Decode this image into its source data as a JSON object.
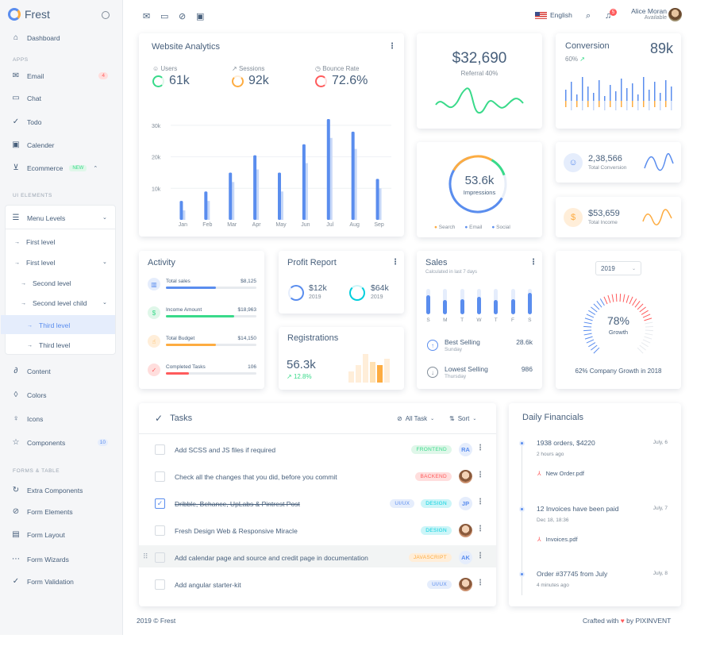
{
  "brand": {
    "name": "Frest"
  },
  "topbar": {
    "language": "English",
    "notif_count": "5",
    "user_name": "Alice Moran",
    "user_status": "Available"
  },
  "sidebar": {
    "dashboard": "Dashboard",
    "apps_header": "APPS",
    "email": "Email",
    "email_badge": "4",
    "chat": "Chat",
    "todo": "Todo",
    "calender": "Calender",
    "ecommerce": "Ecommerce",
    "ecommerce_badge": "NEW",
    "ui_header": "UI ELEMENTS",
    "menu_levels": "Menu Levels",
    "first_level_1": "First level",
    "first_level_2": "First level",
    "second_level": "Second level",
    "second_level_child": "Second level child",
    "third_level_1": "Third level",
    "third_level_2": "Third level",
    "content": "Content",
    "colors": "Colors",
    "icons": "Icons",
    "components": "Components",
    "components_badge": "10",
    "forms_header": "FORMS & TABLE",
    "extra_components": "Extra Components",
    "form_elements": "Form Elements",
    "form_layout": "Form Layout",
    "form_wizards": "Form Wizards",
    "form_validation": "Form Validation"
  },
  "analytics": {
    "title": "Website Analytics",
    "users_label": "Users",
    "users_value": "61k",
    "sessions_label": "Sessions",
    "sessions_value": "92k",
    "bounce_label": "Bounce Rate",
    "bounce_value": "72.6%"
  },
  "chart_data": {
    "type": "bar",
    "categories": [
      "Jan",
      "Feb",
      "Mar",
      "Apr",
      "May",
      "Jun",
      "Jul",
      "Aug",
      "Sep"
    ],
    "series": [
      {
        "values": [
          6000,
          9000,
          15000,
          20500,
          15000,
          24000,
          32000,
          28000,
          13000
        ]
      },
      {
        "values": [
          3000,
          6000,
          12000,
          16000,
          9000,
          18000,
          26000,
          22500,
          10000
        ]
      }
    ],
    "yticks": [
      "10k",
      "20k",
      "30k"
    ],
    "ylim": [
      0,
      34000
    ],
    "colors": [
      "#5a8dee",
      "#c7d8f8"
    ]
  },
  "referral": {
    "value": "$32,690",
    "label": "Referral 40%"
  },
  "conversion": {
    "title": "Conversion",
    "value": "89k",
    "pct": "60%"
  },
  "impressions": {
    "value": "53.6k",
    "label": "Impressions",
    "legend": [
      "Search",
      "Email",
      "Social"
    ]
  },
  "total_conversion": {
    "value": "2,38,566",
    "label": "Total Conversion"
  },
  "total_income": {
    "value": "$53,659",
    "label": "Total Income"
  },
  "activity": {
    "title": "Activity",
    "items": [
      {
        "label": "Total sales",
        "value": "$8,125",
        "pct": 0.55,
        "color": "#5a8dee"
      },
      {
        "label": "Income Amount",
        "value": "$18,963",
        "pct": 0.75,
        "color": "#39da8a"
      },
      {
        "label": "Total Budget",
        "value": "$14,150",
        "pct": 0.55,
        "color": "#fdac41"
      },
      {
        "label": "Completed Tasks",
        "value": "106",
        "pct": 0.25,
        "color": "#ff5b5c"
      }
    ]
  },
  "profit": {
    "title": "Profit Report",
    "v1": "$12k",
    "y1": "2019",
    "v2": "$64k",
    "y2": "2019"
  },
  "registrations": {
    "title": "Registrations",
    "value": "56.3k",
    "growth": "12.8%"
  },
  "sales": {
    "title": "Sales",
    "subtitle": "Calculated in last 7 days",
    "days": [
      "S",
      "M",
      "T",
      "W",
      "T",
      "F",
      "S"
    ],
    "levels": [
      0.75,
      0.55,
      0.6,
      0.7,
      0.55,
      0.6,
      0.85
    ],
    "best_label": "Best Selling",
    "best_sub": "Sunday",
    "best_value": "28.6k",
    "low_label": "Lowest Selling",
    "low_sub": "Thursday",
    "low_value": "986"
  },
  "growth": {
    "year": "2019",
    "value": "78%",
    "label": "Growth",
    "caption": "62% Company Growth in 2018"
  },
  "tasks": {
    "title": "Tasks",
    "filter": "All Task",
    "sort": "Sort",
    "items": [
      {
        "text": "Add SCSS and JS files if required",
        "tags": [
          "FRONTEND"
        ],
        "avatar": "RA"
      },
      {
        "text": "Check all the changes that you did, before you commit",
        "tags": [
          "BACKEND"
        ],
        "avatar": ""
      },
      {
        "text": "Dribble, Behance, UpLabs & Pintrest Post",
        "tags": [
          "UI/UX",
          "DESIGN"
        ],
        "avatar": "JP"
      },
      {
        "text": "Fresh Design Web & Responsive Miracle",
        "tags": [
          "DESIGN"
        ],
        "avatar": ""
      },
      {
        "text": "Add calendar page and source and credit page in documentation",
        "tags": [
          "JAVASCRIPT"
        ],
        "avatar": "AK"
      },
      {
        "text": "Add angular starter-kit",
        "tags": [
          "UI/UX"
        ],
        "avatar": ""
      }
    ]
  },
  "financials": {
    "title": "Daily Financials",
    "items": [
      {
        "title": "1938 orders, $4220",
        "sub": "2 hours ago",
        "date": "July, 6",
        "file": "New Order.pdf"
      },
      {
        "title": "12 Invoices have been paid",
        "sub": "Dec 18, 18:36",
        "date": "July, 7",
        "file": "Invoices.pdf"
      },
      {
        "title": "Order #37745 from July",
        "sub": "4 minutes ago",
        "date": "July, 8",
        "file": ""
      }
    ]
  },
  "footer": {
    "left": "2019 © Frest",
    "right_prefix": "Crafted with",
    "right_suffix": "by PIXINVENT"
  }
}
